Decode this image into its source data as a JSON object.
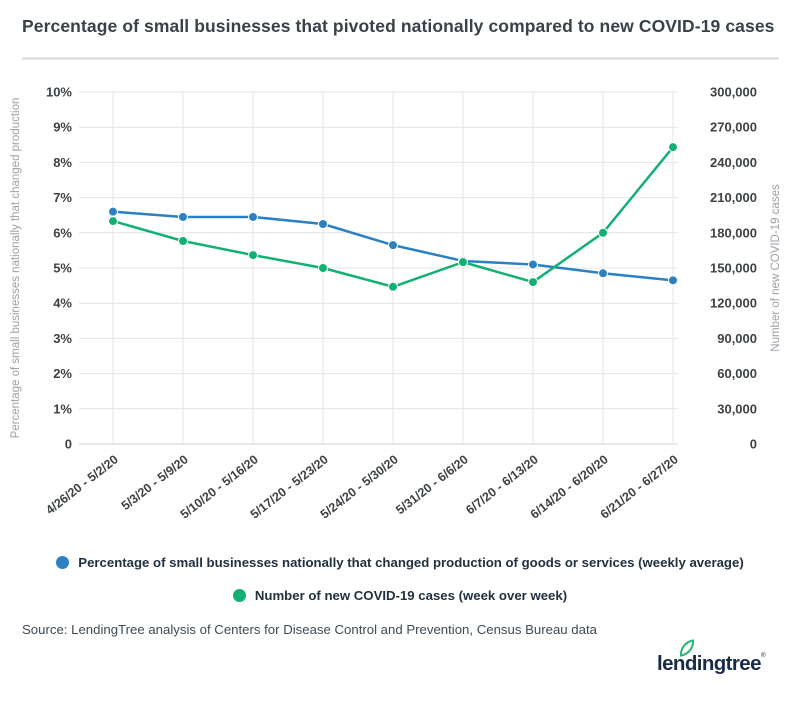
{
  "title": "Percentage of small businesses that pivoted nationally compared to new COVID-19 cases",
  "source": "Source: LendingTree analysis of Centers for Disease Control and Prevention, Census Bureau data",
  "logo": {
    "text": "lendingtree",
    "reg_mark": "®",
    "leaf_color": "#22b573",
    "text_color": "#1a2b49"
  },
  "colors": {
    "pct_line": "#2b81c4",
    "cases_line": "#12b173",
    "grid": "#e4e4e4",
    "zero_line": "#d2d2d2",
    "tick_text": "#3e4245",
    "axis_label_text": "#9aa1a8"
  },
  "chart_data": {
    "type": "line",
    "title": "Percentage of small businesses that pivoted nationally compared to new COVID-19 cases",
    "grid": true,
    "legend_position": "bottom",
    "categories": [
      "4/26/20 - 5/2/20",
      "5/3/20 - 5/9/20",
      "5/10/20 - 5/16/20",
      "5/17/20 - 5/23/20",
      "5/24/20 - 5/30/20",
      "5/31/20 - 6/6/20",
      "6/7/20 - 6/13/20",
      "6/14/20 - 6/20/20",
      "6/21/20 - 6/27/20"
    ],
    "series": [
      {
        "name": "Percentage of small businesses nationally that changed production of goods or services (weekly average)",
        "axis": "left",
        "color": "#2b81c4",
        "values": [
          6.6,
          6.45,
          6.45,
          6.25,
          5.65,
          5.2,
          5.1,
          4.85,
          4.65
        ]
      },
      {
        "name": "Number of new COVID-19 cases (week over week)",
        "axis": "right",
        "color": "#12b173",
        "values": [
          190000,
          173000,
          161000,
          150000,
          134000,
          155000,
          138000,
          180000,
          253000
        ]
      }
    ],
    "left_axis": {
      "label": "Percentage of small businesses nationally that changed production",
      "min": 0,
      "max": 10,
      "step": 1,
      "ticks": [
        "10%",
        "9%",
        "8%",
        "7%",
        "6%",
        "5%",
        "4%",
        "3%",
        "2%",
        "1%",
        "0"
      ]
    },
    "right_axis": {
      "label": "Number of new COVID-19 cases",
      "min": 0,
      "max": 300000,
      "step": 30000,
      "ticks": [
        "300,000",
        "270,000",
        "240,000",
        "210,000",
        "180,000",
        "150,000",
        "120,000",
        "90,000",
        "60,000",
        "30,000",
        "0"
      ]
    }
  }
}
